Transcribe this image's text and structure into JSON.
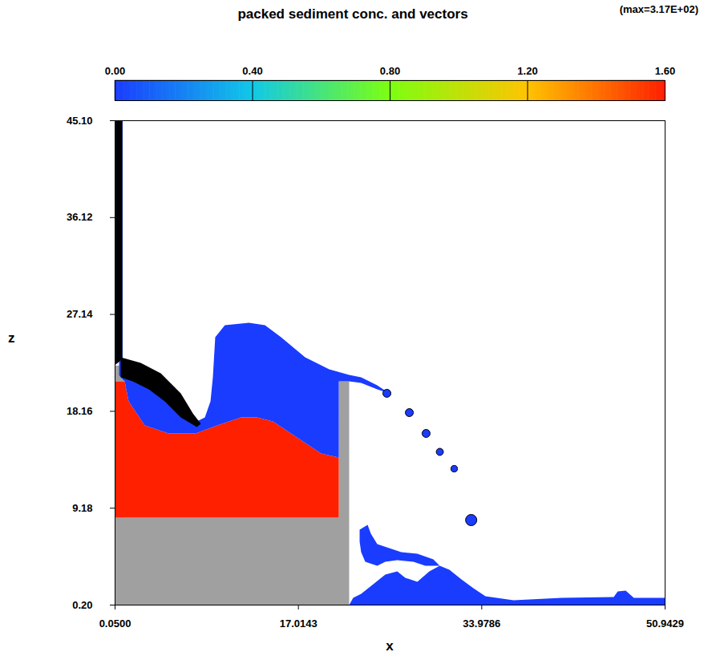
{
  "chart_data": {
    "type": "contour",
    "title": "packed sediment conc. and vectors",
    "annotation": "(max=3.17E+02)",
    "x_label": "x",
    "y_label": "z",
    "xlim": [
      0.05,
      50.9429
    ],
    "ylim": [
      0.2,
      45.1
    ],
    "xticks": [
      {
        "value": 0.05,
        "label": "0.0500"
      },
      17.0143,
      33.9786,
      50.9429
    ],
    "yticks": [
      {
        "value": 0.2,
        "label": "0.20"
      },
      9.18,
      18.16,
      27.14,
      36.12,
      {
        "value": 45.1,
        "label": "45.10"
      }
    ],
    "colorbar": {
      "range": [
        0,
        1.6
      ],
      "ticks": [
        {
          "value": 0,
          "label": "0.00"
        },
        {
          "value": 0.4,
          "label": "0.40"
        },
        {
          "value": 0.8,
          "label": "0.80"
        },
        {
          "value": 1.2,
          "label": "1.20"
        },
        {
          "value": 1.6,
          "label": "1.60"
        }
      ]
    },
    "obstacles": [
      [
        [
          0.05,
          0.2
        ],
        [
          21.71,
          0.2
        ],
        [
          21.71,
          20.94
        ],
        [
          20.75,
          20.94
        ],
        [
          20.75,
          8.3
        ],
        [
          0.05,
          8.3
        ]
      ],
      [
        [
          0.05,
          20.94
        ],
        [
          0.94,
          20.94
        ],
        [
          0.94,
          22.4
        ],
        [
          0.05,
          22.4
        ]
      ]
    ],
    "regions": [
      {
        "conc": 1.6,
        "points": [
          [
            0.05,
            8.3
          ],
          [
            20.75,
            8.3
          ],
          [
            20.75,
            13.88
          ],
          [
            19.12,
            14.25
          ],
          [
            16.89,
            15.74
          ],
          [
            14.66,
            17.23
          ],
          [
            13.2,
            17.6
          ],
          [
            11.7,
            17.6
          ],
          [
            9.5,
            16.85
          ],
          [
            7.5,
            16.11
          ],
          [
            5.0,
            16.11
          ],
          [
            2.8,
            16.85
          ],
          [
            1.31,
            19.08
          ],
          [
            0.94,
            20.94
          ],
          [
            0.05,
            20.94
          ]
        ]
      },
      {
        "conc": 0,
        "points": [
          [
            0.42,
            22.95
          ],
          [
            2.42,
            22.43
          ],
          [
            4.28,
            21.32
          ],
          [
            5.76,
            19.83
          ],
          [
            6.87,
            17.97
          ],
          [
            7.62,
            17.23
          ],
          [
            8.36,
            17.6
          ],
          [
            8.88,
            19.08
          ],
          [
            9.1,
            21.32
          ],
          [
            9.32,
            25.03
          ],
          [
            10.21,
            26.15
          ],
          [
            12.44,
            26.37
          ],
          [
            13.92,
            26.15
          ],
          [
            15.41,
            25.03
          ],
          [
            17.63,
            23.17
          ],
          [
            19.86,
            22.06
          ],
          [
            21.71,
            21.54
          ],
          [
            22.82,
            21.32
          ],
          [
            24.31,
            20.57
          ],
          [
            25.42,
            19.83
          ],
          [
            24.31,
            20.2
          ],
          [
            22.82,
            20.8
          ],
          [
            21.71,
            20.94
          ],
          [
            20.75,
            20.94
          ],
          [
            20.75,
            13.88
          ],
          [
            19.12,
            14.25
          ],
          [
            16.89,
            15.74
          ],
          [
            14.66,
            17.23
          ],
          [
            13.2,
            17.6
          ],
          [
            11.7,
            17.6
          ],
          [
            9.5,
            16.85
          ],
          [
            7.5,
            16.11
          ],
          [
            5.0,
            16.11
          ],
          [
            2.8,
            16.85
          ],
          [
            1.31,
            19.08
          ],
          [
            0.94,
            20.94
          ],
          [
            0.42,
            21.5
          ]
        ]
      },
      {
        "conc": 0,
        "points": [
          [
            22.68,
            7.19
          ],
          [
            23.42,
            7.64
          ],
          [
            23.72,
            6.82
          ],
          [
            24.31,
            5.85
          ],
          [
            26.53,
            5.11
          ],
          [
            28.02,
            4.96
          ],
          [
            29.5,
            4.44
          ],
          [
            30.09,
            3.84
          ],
          [
            28.76,
            3.84
          ],
          [
            27.65,
            4.21
          ],
          [
            26.16,
            4.36
          ],
          [
            25.05,
            4.21
          ],
          [
            24.31,
            3.84
          ],
          [
            23.2,
            4.21
          ],
          [
            22.82,
            5.11
          ],
          [
            22.68,
            6.07
          ]
        ]
      },
      {
        "conc": 0,
        "points": [
          [
            21.71,
            0.2
          ],
          [
            50.9429,
            0.2
          ],
          [
            50.9429,
            0.87
          ],
          [
            48.05,
            0.87
          ],
          [
            47.3,
            1.54
          ],
          [
            46.56,
            1.46
          ],
          [
            46.19,
            0.94
          ],
          [
            41.37,
            0.87
          ],
          [
            36.92,
            0.65
          ],
          [
            34.32,
            1.02
          ],
          [
            33.21,
            1.76
          ],
          [
            32.1,
            2.58
          ],
          [
            30.99,
            3.47
          ],
          [
            30.09,
            3.84
          ],
          [
            29.13,
            3.32
          ],
          [
            28.02,
            2.36
          ],
          [
            26.9,
            2.73
          ],
          [
            26.16,
            3.32
          ],
          [
            25.05,
            3.03
          ],
          [
            23.94,
            2.13
          ],
          [
            22.82,
            1.24
          ],
          [
            22.08,
            0.87
          ]
        ]
      },
      {
        "conc": 0,
        "points": [
          [
            0.1,
            22.5
          ],
          [
            0.75,
            23.0
          ],
          [
            0.75,
            45.1
          ],
          [
            0.1,
            45.1
          ]
        ]
      }
    ],
    "dense_vectors": [
      [
        [
          0.1,
          22.5
        ],
        [
          0.72,
          23.0
        ],
        [
          0.72,
          45.1
        ],
        [
          0.1,
          45.1
        ]
      ],
      [
        [
          0.57,
          23.17
        ],
        [
          2.42,
          22.65
        ],
        [
          4.28,
          21.69
        ],
        [
          6.13,
          19.83
        ],
        [
          7.25,
          17.97
        ],
        [
          7.99,
          17.0
        ],
        [
          7.62,
          16.71
        ],
        [
          6.13,
          17.6
        ],
        [
          4.65,
          19.08
        ],
        [
          3.17,
          20.2
        ],
        [
          1.68,
          20.94
        ],
        [
          0.57,
          21.32
        ]
      ]
    ],
    "droplets": [
      {
        "x": 25.2,
        "z": 19.83,
        "r": 0.37,
        "conc": 0
      },
      {
        "x": 27.28,
        "z": 18.04,
        "r": 0.37,
        "conc": 0
      },
      {
        "x": 28.83,
        "z": 16.11,
        "r": 0.37,
        "conc": 0
      },
      {
        "x": 30.1,
        "z": 14.4,
        "r": 0.33,
        "conc": 0
      },
      {
        "x": 31.43,
        "z": 12.84,
        "r": 0.3,
        "conc": 0
      },
      {
        "x": 33.0,
        "z": 8.08,
        "r": 0.52,
        "conc": 0
      }
    ]
  }
}
